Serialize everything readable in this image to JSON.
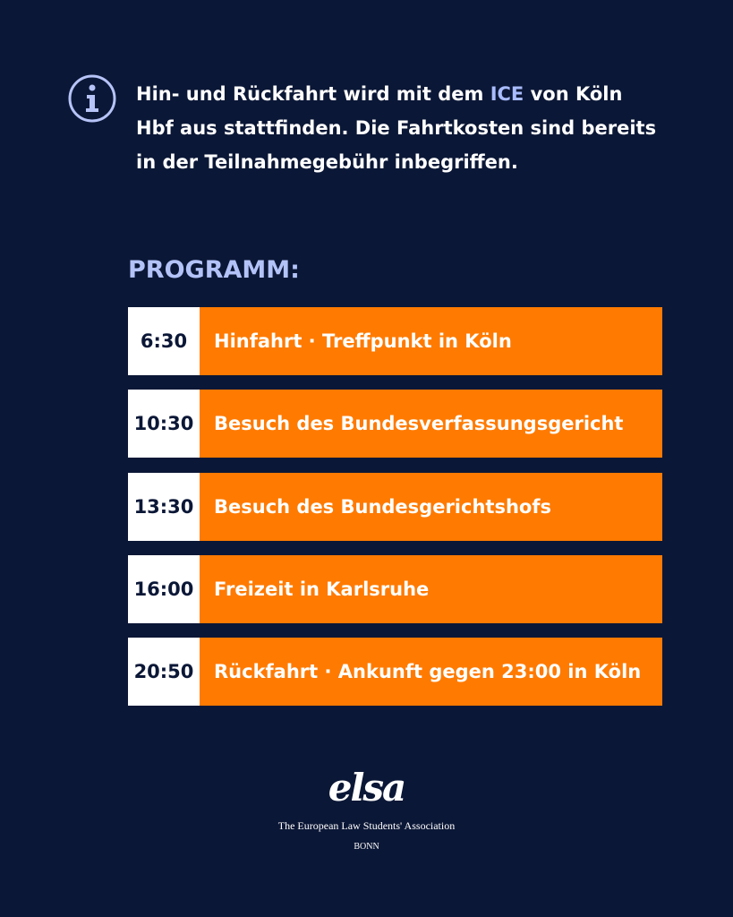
{
  "info": {
    "text_before": "Hin- und Rückfahrt wird mit dem ",
    "highlight": "ICE",
    "text_after": " von Köln Hbf aus stattfinden. Die Fahrtkosten sind bereits in der Teilnahmegebühr inbegriffen."
  },
  "program": {
    "heading": "PROGRAMM:",
    "rows": [
      {
        "time": "6:30",
        "label": "Hinfahrt · Treffpunkt in Köln"
      },
      {
        "time": "10:30",
        "label": "Besuch des Bundesverfassungsgericht"
      },
      {
        "time": "13:30",
        "label": "Besuch des Bundesgerichtshofs"
      },
      {
        "time": "16:00",
        "label": "Freizeit in Karlsruhe"
      },
      {
        "time": "20:50",
        "label": "Rückfahrt · Ankunft gegen 23:00 in Köln"
      }
    ]
  },
  "footer": {
    "logo": "elsa",
    "name": "The European Law Students' Association",
    "city": "BONN"
  }
}
